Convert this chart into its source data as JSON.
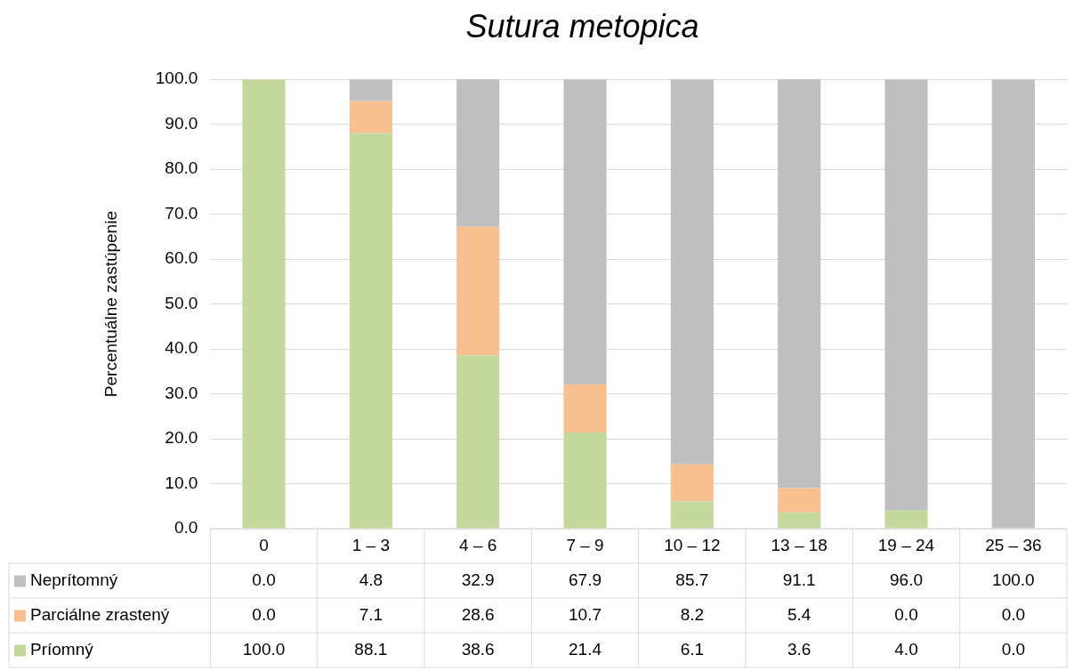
{
  "chart_data": {
    "type": "bar",
    "title": "Sutura metopica",
    "ylabel": "Percentuálne zastúpenie",
    "categories": [
      "0",
      "1 – 3",
      "4 – 6",
      "7 – 9",
      "10 – 12",
      "13 – 18",
      "19 – 24",
      "25 – 36"
    ],
    "stacked": true,
    "ylim": [
      0,
      100
    ],
    "yticks": [
      {
        "value": 0,
        "label": "0.0"
      },
      {
        "value": 10,
        "label": "10.0"
      },
      {
        "value": 20,
        "label": "20.0"
      },
      {
        "value": 30,
        "label": "30.0"
      },
      {
        "value": 40,
        "label": "40.0"
      },
      {
        "value": 50,
        "label": "50.0"
      },
      {
        "value": 60,
        "label": "60.0"
      },
      {
        "value": 70,
        "label": "70.0"
      },
      {
        "value": 80,
        "label": "80.0"
      },
      {
        "value": 90,
        "label": "90.0"
      },
      {
        "value": 100,
        "label": "100.0"
      }
    ],
    "grid": "y",
    "legend": "bottom left",
    "series": [
      {
        "name": "Príomný",
        "color": "#c5d89c",
        "values": [
          100.0,
          88.1,
          38.6,
          21.4,
          6.1,
          3.6,
          4.0,
          0.0
        ],
        "value_labels": [
          "100.0",
          "88.1",
          "38.6",
          "21.4",
          "6.1",
          "3.6",
          "4.0",
          "0.0"
        ]
      },
      {
        "name": "Parciálne zrastený",
        "color": "#f8c090",
        "values": [
          0.0,
          7.1,
          28.6,
          10.7,
          8.2,
          5.4,
          0.0,
          0.0
        ],
        "value_labels": [
          "0.0",
          "7.1",
          "28.6",
          "10.7",
          "8.2",
          "5.4",
          "0.0",
          "0.0"
        ]
      },
      {
        "name": "Neprítomný",
        "color": "#bfbfbf",
        "values": [
          0.0,
          4.8,
          32.9,
          67.9,
          85.7,
          91.1,
          96.0,
          100.0
        ],
        "value_labels": [
          "0.0",
          "4.8",
          "32.9",
          "67.9",
          "85.7",
          "91.1",
          "96.0",
          "100.0"
        ]
      }
    ]
  }
}
